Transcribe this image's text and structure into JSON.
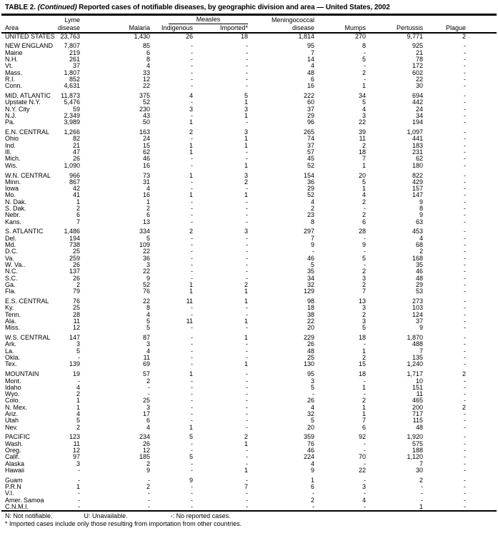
{
  "title": {
    "label": "TABLE 2.",
    "continued": "(Continued)",
    "rest": "Reported cases of notifiable diseases, by geographic division and area — United States, 2002"
  },
  "header": {
    "area": "Area",
    "lyme": {
      "line1": "Lyme",
      "line2": "disease"
    },
    "malaria": "Malaria",
    "measles": {
      "group": "Measles",
      "sub": [
        "Indigenous",
        "Imported*"
      ]
    },
    "mening": {
      "line1": "Meningococcal",
      "line2": "disease"
    },
    "mumps": "Mumps",
    "pertussis": "Pertussis",
    "plague": "Plague"
  },
  "groups": [
    {
      "rows": [
        [
          "UNITED STATES",
          "23,763",
          "1,430",
          "26",
          "18",
          "1,814",
          "270",
          "9,771",
          "2"
        ]
      ]
    },
    {
      "rows": [
        [
          "NEW ENGLAND",
          "7,807",
          "85",
          "-",
          "-",
          "95",
          "8",
          "925",
          "-"
        ],
        [
          "Maine",
          "219",
          "6",
          "-",
          "-",
          "7",
          "-",
          "21",
          "-"
        ],
        [
          "N.H.",
          "261",
          "8",
          "-",
          "-",
          "14",
          "5",
          "78",
          "-"
        ],
        [
          "Vt.",
          "37",
          "4",
          "-",
          "-",
          "4",
          "-",
          "172",
          "-"
        ],
        [
          "Mass.",
          "1,807",
          "33",
          "-",
          "-",
          "48",
          "2",
          "602",
          "-"
        ],
        [
          "R.I.",
          "852",
          "12",
          "-",
          "-",
          "6",
          "-",
          "22",
          "-"
        ],
        [
          "Conn.",
          "4,631",
          "22",
          "-",
          "-",
          "16",
          "1",
          "30",
          "-"
        ]
      ]
    },
    {
      "rows": [
        [
          "MID. ATLANTIC",
          "11,873",
          "375",
          "4",
          "5",
          "222",
          "34",
          "694",
          "-"
        ],
        [
          "Upstate N.Y.",
          "5,476",
          "52",
          "-",
          "1",
          "60",
          "5",
          "442",
          "-"
        ],
        [
          "N.Y. City",
          "59",
          "230",
          "3",
          "3",
          "37",
          "4",
          "24",
          "-"
        ],
        [
          "N.J.",
          "2,349",
          "43",
          "-",
          "1",
          "29",
          "3",
          "34",
          "-"
        ],
        [
          "Pa.",
          "3,989",
          "50",
          "1",
          "-",
          "96",
          "22",
          "194",
          "-"
        ]
      ]
    },
    {
      "rows": [
        [
          "E.N. CENTRAL",
          "1,266",
          "163",
          "2",
          "3",
          "265",
          "39",
          "1,097",
          "-"
        ],
        [
          "Ohio",
          "82",
          "24",
          "-",
          "1",
          "74",
          "11",
          "441",
          "-"
        ],
        [
          "Ind.",
          "21",
          "15",
          "1",
          "1",
          "37",
          "2",
          "183",
          "-"
        ],
        [
          "Ill.",
          "47",
          "62",
          "1",
          "-",
          "57",
          "18",
          "231",
          "-"
        ],
        [
          "Mich.",
          "26",
          "46",
          "-",
          "-",
          "45",
          "7",
          "62",
          "-"
        ],
        [
          "Wis.",
          "1,090",
          "16",
          "-",
          "1",
          "52",
          "1",
          "180",
          "-"
        ]
      ]
    },
    {
      "rows": [
        [
          "W.N. CENTRAL",
          "966",
          "73",
          "1",
          "3",
          "154",
          "20",
          "822",
          "-"
        ],
        [
          "Minn.",
          "867",
          "31",
          "-",
          "2",
          "36",
          "5",
          "429",
          "-"
        ],
        [
          "Iowa",
          "42",
          "4",
          "-",
          "-",
          "29",
          "1",
          "157",
          "-"
        ],
        [
          "Mo.",
          "41",
          "16",
          "1",
          "1",
          "52",
          "4",
          "147",
          "-"
        ],
        [
          "N. Dak.",
          "1",
          "1",
          "-",
          "-",
          "4",
          "2",
          "9",
          "-"
        ],
        [
          "S. Dak.",
          "2",
          "2",
          "-",
          "-",
          "2",
          "-",
          "8",
          "-"
        ],
        [
          "Nebr.",
          "6",
          "6",
          "-",
          "-",
          "23",
          "2",
          "9",
          "-"
        ],
        [
          "Kans.",
          "7",
          "13",
          "-",
          "-",
          "8",
          "6",
          "63",
          "-"
        ]
      ]
    },
    {
      "rows": [
        [
          "S. ATLANTIC",
          "1,486",
          "334",
          "2",
          "3",
          "297",
          "28",
          "453",
          "-"
        ],
        [
          "Del.",
          "194",
          "5",
          "-",
          "-",
          "7",
          "-",
          "4",
          "-"
        ],
        [
          "Md.",
          "738",
          "109",
          "-",
          "-",
          "9",
          "9",
          "68",
          "-"
        ],
        [
          "D.C.",
          "25",
          "22",
          "-",
          "-",
          "-",
          "-",
          "2",
          "-"
        ],
        [
          "Va.",
          "259",
          "36",
          "-",
          "-",
          "46",
          "5",
          "168",
          "-"
        ],
        [
          "W. Va..",
          "26",
          "3",
          "-",
          "-",
          "5",
          "-",
          "35",
          "-"
        ],
        [
          "N.C.",
          "137",
          "22",
          "-",
          "-",
          "35",
          "2",
          "46",
          "-"
        ],
        [
          "S.C.",
          "26",
          "9",
          "-",
          "-",
          "34",
          "3",
          "48",
          "-"
        ],
        [
          "Ga.",
          "2",
          "52",
          "1",
          "2",
          "32",
          "2",
          "29",
          "-"
        ],
        [
          "Fla.",
          "79",
          "76",
          "1",
          "1",
          "129",
          "7",
          "53",
          "-"
        ]
      ]
    },
    {
      "rows": [
        [
          "E.S. CENTRAL",
          "76",
          "22",
          "11",
          "1",
          "98",
          "13",
          "273",
          "-"
        ],
        [
          "Ky.",
          "25",
          "8",
          "-",
          "-",
          "18",
          "3",
          "103",
          "-"
        ],
        [
          "Tenn.",
          "28",
          "4",
          "-",
          "-",
          "38",
          "2",
          "124",
          "-"
        ],
        [
          "Ala.",
          "11",
          "5",
          "11",
          "1",
          "22",
          "3",
          "37",
          "-"
        ],
        [
          "Miss.",
          "12",
          "5",
          "-",
          "-",
          "20",
          "5",
          "9",
          "-"
        ]
      ]
    },
    {
      "rows": [
        [
          "W.S. CENTRAL",
          "147",
          "87",
          "-",
          "1",
          "229",
          "18",
          "1,870",
          "-"
        ],
        [
          "Ark.",
          "3",
          "3",
          "-",
          "-",
          "26",
          "-",
          "488",
          "-"
        ],
        [
          "La.",
          "5",
          "4",
          "-",
          "-",
          "48",
          "1",
          "7",
          "-"
        ],
        [
          "Okla.",
          "-",
          "11",
          "-",
          "-",
          "25",
          "2",
          "135",
          "-"
        ],
        [
          "Tex.",
          "139",
          "69",
          "-",
          "1",
          "130",
          "15",
          "1,240",
          "-"
        ]
      ]
    },
    {
      "rows": [
        [
          "MOUNTAIN",
          "19",
          "57",
          "1",
          "-",
          "95",
          "18",
          "1,717",
          "2"
        ],
        [
          "Mont.",
          "-",
          "2",
          "-",
          "-",
          "3",
          "-",
          "10",
          "-"
        ],
        [
          "Idaho",
          "4",
          "-",
          "-",
          "-",
          "5",
          "1",
          "151",
          "-"
        ],
        [
          "Wyo.",
          "2",
          "-",
          "-",
          "-",
          "-",
          "-",
          "11",
          "-"
        ],
        [
          "Colo.",
          "1",
          "25",
          "-",
          "-",
          "26",
          "2",
          "465",
          "-"
        ],
        [
          "N. Mex.",
          "1",
          "3",
          "-",
          "-",
          "4",
          "1",
          "200",
          "2"
        ],
        [
          "Ariz.",
          "4",
          "17",
          "-",
          "-",
          "32",
          "1",
          "717",
          "-"
        ],
        [
          "Utah",
          "5",
          "6",
          "-",
          "-",
          "5",
          "7",
          "115",
          "-"
        ],
        [
          "Nev.",
          "2",
          "4",
          "1",
          "-",
          "20",
          "6",
          "48",
          "-"
        ]
      ]
    },
    {
      "rows": [
        [
          "PACIFIC",
          "123",
          "234",
          "5",
          "2",
          "359",
          "92",
          "1,920",
          "-"
        ],
        [
          "Wash.",
          "11",
          "26",
          "-",
          "1",
          "76",
          "-",
          "575",
          "-"
        ],
        [
          "Oreg.",
          "12",
          "12",
          "-",
          "-",
          "46",
          "-",
          "188",
          "-"
        ],
        [
          "Calif.",
          "97",
          "185",
          "5",
          "-",
          "224",
          "70",
          "1,120",
          "-"
        ],
        [
          "Alaska",
          "3",
          "2",
          "-",
          "-",
          "4",
          "-",
          "7",
          "-"
        ],
        [
          "Hawaii",
          "-",
          "9",
          "-",
          "1",
          "9",
          "22",
          "30",
          "-"
        ]
      ]
    },
    {
      "rows": [
        [
          "Guam",
          "-",
          "-",
          "9",
          "-",
          "1",
          "-",
          "2",
          "-"
        ],
        [
          "P.R.N",
          "1",
          "2",
          "-",
          "7",
          "6",
          "3",
          "-",
          "-"
        ],
        [
          "V.I.",
          "-",
          "-",
          "-",
          "-",
          "-",
          "-",
          "-",
          "-"
        ],
        [
          "Amer. Samoa",
          "-",
          "-",
          "-",
          "-",
          "2",
          "4",
          "-",
          "-"
        ],
        [
          "C.N.M.I.",
          "-",
          "-",
          "-",
          "-",
          "-",
          "-",
          "1",
          "-"
        ]
      ]
    }
  ],
  "footnotes": {
    "legend": [
      "N: Not notifiable.",
      "U: Unavailable.",
      "-: No reported cases."
    ],
    "imported": "* Imported cases include only those resulting from importation from other countries."
  }
}
